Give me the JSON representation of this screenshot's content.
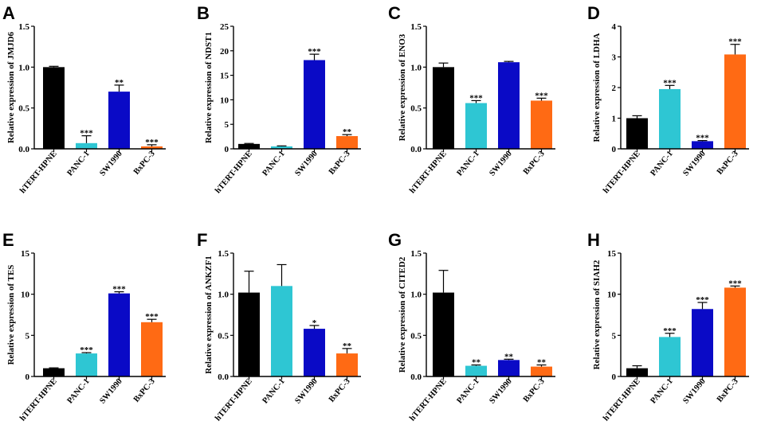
{
  "figure": {
    "bar_colors": [
      "#000000",
      "#2EC6D3",
      "#0A0AC6",
      "#FF6A14"
    ]
  },
  "chart_data": [
    {
      "panel": "A",
      "type": "bar",
      "categories": [
        "hTERT-HPNE",
        "PANC-1",
        "SW1990",
        "BxPC-3"
      ],
      "values": [
        1.0,
        0.07,
        0.7,
        0.03
      ],
      "errors": [
        0.01,
        0.09,
        0.08,
        0.02
      ],
      "significance": [
        "",
        "***",
        "**",
        "***"
      ],
      "ylabel": "Relative expression of JMJD6",
      "ylim": [
        0,
        1.5
      ],
      "yticks": [
        "0.0",
        "0.5",
        "1.0",
        "1.5"
      ]
    },
    {
      "panel": "B",
      "type": "bar",
      "categories": [
        "hTERT-HPNE",
        "PANC-1",
        "SW1990",
        "BxPC-3"
      ],
      "values": [
        1.0,
        0.5,
        18.1,
        2.6
      ],
      "errors": [
        0.1,
        0.1,
        1.2,
        0.3
      ],
      "significance": [
        "",
        "",
        "***",
        "**"
      ],
      "ylabel": "Relative expression of NDST1",
      "ylim": [
        0,
        25
      ],
      "yticks": [
        "0",
        "5",
        "10",
        "15",
        "20",
        "25"
      ]
    },
    {
      "panel": "C",
      "type": "bar",
      "categories": [
        "hTERT-HPNE",
        "PANC-1",
        "SW1990",
        "BxPC-3"
      ],
      "values": [
        1.0,
        0.56,
        1.06,
        0.59
      ],
      "errors": [
        0.05,
        0.03,
        0.01,
        0.03
      ],
      "significance": [
        "",
        "***",
        "",
        "***"
      ],
      "ylabel": "Relative expression of ENO3",
      "ylim": [
        0,
        1.5
      ],
      "yticks": [
        "0.0",
        "0.5",
        "1.0",
        "1.5"
      ]
    },
    {
      "panel": "D",
      "type": "bar",
      "categories": [
        "hTERT-HPNE",
        "PANC-1",
        "SW1990",
        "BxPC-3"
      ],
      "values": [
        1.0,
        1.95,
        0.25,
        3.08
      ],
      "errors": [
        0.08,
        0.12,
        0.02,
        0.33
      ],
      "significance": [
        "",
        "***",
        "***",
        "***"
      ],
      "ylabel": "Relative expression of LDHA",
      "ylim": [
        0,
        4
      ],
      "yticks": [
        "0",
        "1",
        "2",
        "3",
        "4"
      ]
    },
    {
      "panel": "E",
      "type": "bar",
      "categories": [
        "hTERT-HPNE",
        "PANC-1",
        "SW1990",
        "BxPC-3"
      ],
      "values": [
        1.0,
        2.8,
        10.1,
        6.6
      ],
      "errors": [
        0.05,
        0.1,
        0.2,
        0.35
      ],
      "significance": [
        "",
        "***",
        "***",
        "***"
      ],
      "ylabel": "Relative expression of TES",
      "ylim": [
        0,
        15
      ],
      "yticks": [
        "0",
        "5",
        "10",
        "15"
      ]
    },
    {
      "panel": "F",
      "type": "bar",
      "categories": [
        "hTERT-HPNE",
        "PANC-1",
        "SW1990",
        "BxPC-3"
      ],
      "values": [
        1.02,
        1.1,
        0.58,
        0.28
      ],
      "errors": [
        0.26,
        0.26,
        0.04,
        0.06
      ],
      "significance": [
        "",
        "",
        "*",
        "**"
      ],
      "ylabel": "Relative expression of ANKZF1",
      "ylim": [
        0,
        1.5
      ],
      "yticks": [
        "0.0",
        "0.5",
        "1.0",
        "1.5"
      ]
    },
    {
      "panel": "G",
      "type": "bar",
      "categories": [
        "hTERT-HPNE",
        "PANC-1",
        "SW1990",
        "BxPC-3"
      ],
      "values": [
        1.02,
        0.13,
        0.2,
        0.12
      ],
      "errors": [
        0.27,
        0.01,
        0.01,
        0.02
      ],
      "significance": [
        "",
        "**",
        "**",
        "**"
      ],
      "ylabel": "Relative expression of CITED2",
      "ylim": [
        0,
        1.5
      ],
      "yticks": [
        "0.0",
        "0.5",
        "1.0",
        "1.5"
      ]
    },
    {
      "panel": "H",
      "type": "bar",
      "categories": [
        "hTERT-HPNE",
        "PANC-1",
        "SW1990",
        "BxPC-3"
      ],
      "values": [
        1.0,
        4.8,
        8.2,
        10.8
      ],
      "errors": [
        0.3,
        0.45,
        0.8,
        0.2
      ],
      "significance": [
        "",
        "***",
        "***",
        "***"
      ],
      "ylabel": "Relative expression of SIAH2",
      "ylim": [
        0,
        15
      ],
      "yticks": [
        "0",
        "5",
        "10",
        "15"
      ]
    }
  ]
}
